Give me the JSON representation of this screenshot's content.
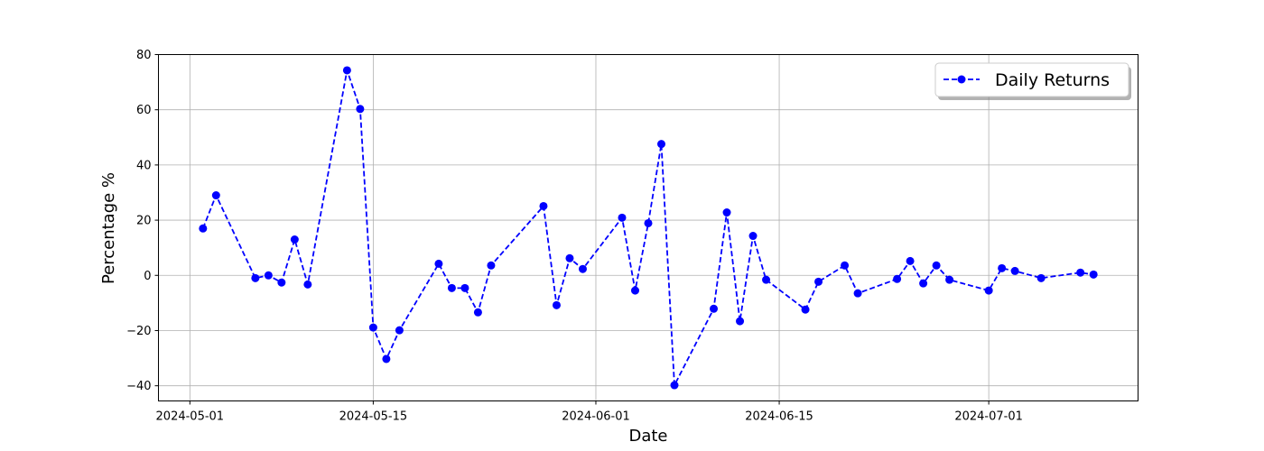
{
  "chart_data": {
    "type": "line",
    "title": "",
    "xlabel": "Date",
    "ylabel": "Percentage %",
    "xlim": [
      "2024-04-28T14:24",
      "2024-07-12T09:36"
    ],
    "ylim": [
      -45.5,
      80
    ],
    "grid": true,
    "legend_placement": "top-right",
    "x_ticks": [
      "2024-05-01",
      "2024-05-15",
      "2024-06-01",
      "2024-06-15",
      "2024-07-01"
    ],
    "y_ticks": [
      -40,
      -20,
      0,
      20,
      40,
      60,
      80
    ],
    "series": [
      {
        "name": "Daily Returns",
        "color": "#0000ff",
        "line_style": "dashed",
        "marker": "circle",
        "points": [
          [
            "2024-05-02",
            17.0
          ],
          [
            "2024-05-03",
            29.0
          ],
          [
            "2024-05-06",
            -1.0
          ],
          [
            "2024-05-07",
            0.0
          ],
          [
            "2024-05-08",
            -2.6
          ],
          [
            "2024-05-09",
            13.0
          ],
          [
            "2024-05-10",
            -3.3
          ],
          [
            "2024-05-13",
            74.3
          ],
          [
            "2024-05-14",
            60.3
          ],
          [
            "2024-05-15",
            -18.9
          ],
          [
            "2024-05-16",
            -30.3
          ],
          [
            "2024-05-17",
            -19.9
          ],
          [
            "2024-05-20",
            4.2
          ],
          [
            "2024-05-21",
            -4.6
          ],
          [
            "2024-05-22",
            -4.6
          ],
          [
            "2024-05-23",
            -13.4
          ],
          [
            "2024-05-24",
            3.6
          ],
          [
            "2024-05-28",
            25.1
          ],
          [
            "2024-05-29",
            -10.8
          ],
          [
            "2024-05-30",
            6.2
          ],
          [
            "2024-05-31",
            2.3
          ],
          [
            "2024-06-03",
            20.9
          ],
          [
            "2024-06-04",
            -5.5
          ],
          [
            "2024-06-05",
            18.9
          ],
          [
            "2024-06-06",
            47.6
          ],
          [
            "2024-06-07",
            -39.8
          ],
          [
            "2024-06-10",
            -12.1
          ],
          [
            "2024-06-11",
            22.8
          ],
          [
            "2024-06-12",
            -16.6
          ],
          [
            "2024-06-13",
            14.3
          ],
          [
            "2024-06-14",
            -1.6
          ],
          [
            "2024-06-17",
            -12.4
          ],
          [
            "2024-06-18",
            -2.3
          ],
          [
            "2024-06-20",
            3.6
          ],
          [
            "2024-06-21",
            -6.5
          ],
          [
            "2024-06-24",
            -1.3
          ],
          [
            "2024-06-25",
            5.2
          ],
          [
            "2024-06-26",
            -2.9
          ],
          [
            "2024-06-27",
            3.6
          ],
          [
            "2024-06-28",
            -1.6
          ],
          [
            "2024-07-01",
            -5.5
          ],
          [
            "2024-07-02",
            2.6
          ],
          [
            "2024-07-03",
            1.6
          ],
          [
            "2024-07-05",
            -1.0
          ],
          [
            "2024-07-08",
            1.0
          ],
          [
            "2024-07-09",
            0.3
          ]
        ]
      }
    ]
  }
}
